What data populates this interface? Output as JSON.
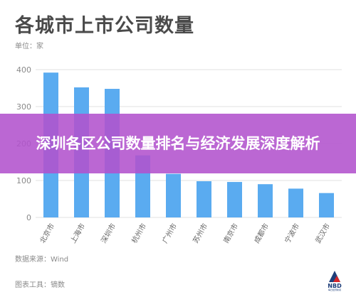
{
  "header": {
    "title": "各城市上市公司数量",
    "unit": "单位：家"
  },
  "banner": {
    "text": "深圳各区公司数量排名与经济发展深度解析"
  },
  "footer": {
    "source": "数据来源：Wind",
    "tool": "图表工具：镝数",
    "logo_text": "NBD",
    "logo_sub": "每日经济新闻"
  },
  "colors": {
    "bar": "#5aabf0",
    "grid": "#e2e2e2",
    "tick": "#8a8a8a",
    "banner": "#b252cd"
  },
  "chart_data": {
    "type": "bar",
    "title": "各城市上市公司数量",
    "ylabel": "单位：家",
    "xlabel": "",
    "categories": [
      "北京市",
      "上海市",
      "深圳市",
      "杭州市",
      "广州市",
      "苏州市",
      "南京市",
      "成都市",
      "宁波市",
      "武汉市"
    ],
    "values": [
      392,
      352,
      348,
      168,
      118,
      98,
      96,
      90,
      78,
      66
    ],
    "ylim": [
      0,
      400
    ],
    "yticks": [
      0,
      100,
      200,
      300,
      400
    ],
    "grid": true
  }
}
